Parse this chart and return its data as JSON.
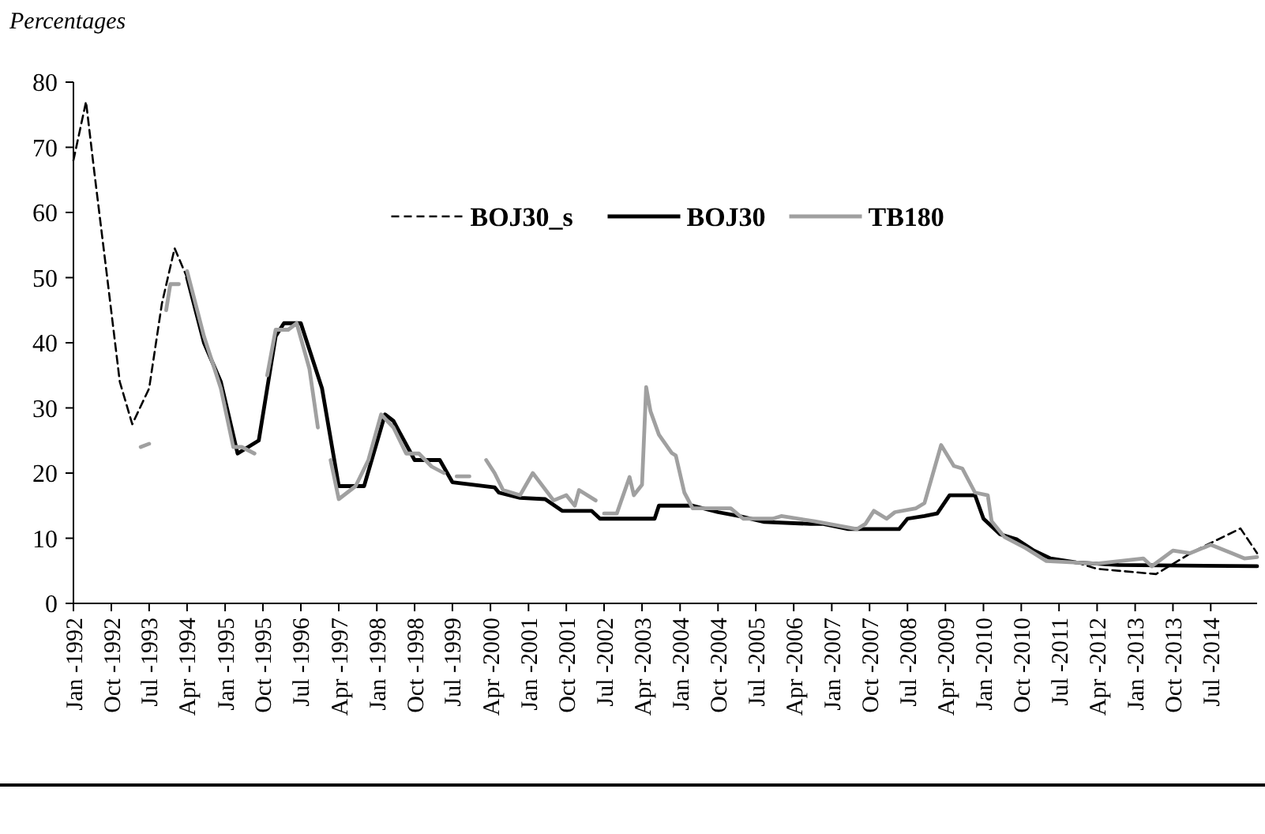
{
  "chart_data": {
    "type": "line",
    "title": "Percentages",
    "xlim": [
      "1992-01",
      "2015-06"
    ],
    "ylim": [
      0,
      80
    ],
    "yticks": [
      0,
      10,
      20,
      30,
      40,
      50,
      60,
      70,
      80
    ],
    "xticks": [
      {
        "value": "1992-01",
        "label": "Jan -1992"
      },
      {
        "value": "1992-10",
        "label": "Oct -1992"
      },
      {
        "value": "1993-07",
        "label": "Jul -1993"
      },
      {
        "value": "1994-04",
        "label": "Apr -1994"
      },
      {
        "value": "1995-01",
        "label": "Jan -1995"
      },
      {
        "value": "1995-10",
        "label": "Oct -1995"
      },
      {
        "value": "1996-07",
        "label": "Jul -1996"
      },
      {
        "value": "1997-04",
        "label": "Apr -1997"
      },
      {
        "value": "1998-01",
        "label": "Jan -1998"
      },
      {
        "value": "1998-10",
        "label": "Oct -1998"
      },
      {
        "value": "1999-07",
        "label": "Jul -1999"
      },
      {
        "value": "2000-04",
        "label": "Apr -2000"
      },
      {
        "value": "2001-01",
        "label": "Jan -2001"
      },
      {
        "value": "2001-10",
        "label": "Oct -2001"
      },
      {
        "value": "2002-07",
        "label": "Jul -2002"
      },
      {
        "value": "2003-04",
        "label": "Apr -2003"
      },
      {
        "value": "2004-01",
        "label": "Jan -2004"
      },
      {
        "value": "2004-10",
        "label": "Oct -2004"
      },
      {
        "value": "2005-07",
        "label": "Jul -2005"
      },
      {
        "value": "2006-04",
        "label": "Apr -2006"
      },
      {
        "value": "2007-01",
        "label": "Jan -2007"
      },
      {
        "value": "2007-10",
        "label": "Oct -2007"
      },
      {
        "value": "2008-07",
        "label": "Jul -2008"
      },
      {
        "value": "2009-04",
        "label": "Apr -2009"
      },
      {
        "value": "2010-01",
        "label": "Jan -2010"
      },
      {
        "value": "2010-10",
        "label": "Oct -2010"
      },
      {
        "value": "2011-07",
        "label": "Jul -2011"
      },
      {
        "value": "2012-04",
        "label": "Apr -2012"
      },
      {
        "value": "2013-01",
        "label": "Jan -2013"
      },
      {
        "value": "2013-10",
        "label": "Oct -2013"
      },
      {
        "value": "2014-07",
        "label": "Jul -2014"
      }
    ],
    "grid": false,
    "legend": "top",
    "marker": "none",
    "series": [
      {
        "name": "BOJ30_s",
        "color": "#000000",
        "line_style": "dashed",
        "x": [
          "1992-01",
          "1992-04",
          "1992-06",
          "1992-09",
          "1992-12",
          "1993-03",
          "1993-07",
          "1993-10",
          "1994-01",
          "1994-04",
          "1994-08",
          "1994-12",
          "1995-04",
          "1995-09",
          "1996-01",
          "1996-03",
          "1996-07",
          "1996-12",
          "1997-04",
          "1997-10",
          "1998-03",
          "1998-05",
          "1998-10",
          "1999-04",
          "1999-07",
          "1999-12",
          "2000-05",
          "2000-06",
          "2000-11",
          "2001-05",
          "2001-09",
          "2002-04",
          "2002-06",
          "2003-07",
          "2003-08",
          "2004-04",
          "2004-10",
          "2005-03",
          "2005-09",
          "2006-08",
          "2006-11",
          "2007-05",
          "2008-05",
          "2008-07",
          "2008-11",
          "2009-02",
          "2009-05",
          "2009-11",
          "2010-01",
          "2010-05",
          "2010-09",
          "2011-01",
          "2011-05",
          "2011-11",
          "2012-04",
          "2013-06",
          "2014-03",
          "2015-02",
          "2015-06"
        ],
        "values": [
          68,
          77,
          66,
          50,
          34,
          27.5,
          33,
          46,
          54.5,
          50,
          40,
          34,
          23,
          25,
          41,
          43,
          43,
          33,
          18,
          18,
          29,
          28,
          22,
          22,
          18.6,
          18.2,
          17.8,
          17,
          16.2,
          16,
          14.2,
          14.2,
          13,
          13,
          15,
          15,
          14,
          13.4,
          12.5,
          12.2,
          12.2,
          11.4,
          11.4,
          13,
          13.4,
          13.8,
          16.6,
          16.6,
          13,
          10.6,
          9.8,
          8.1,
          6.9,
          6.3,
          5.3,
          4.5,
          8,
          11.5,
          7.7
        ]
      },
      {
        "name": "BOJ30",
        "color": "#000000",
        "line_style": "solid",
        "x": [
          "1994-04",
          "1994-08",
          "1994-12",
          "1995-04",
          "1995-09",
          "1996-01",
          "1996-03",
          "1996-07",
          "1996-12",
          "1997-04",
          "1997-10",
          "1998-03",
          "1998-05",
          "1998-10",
          "1999-04",
          "1999-07",
          "1999-12",
          "2000-05",
          "2000-06",
          "2000-11",
          "2001-05",
          "2001-09",
          "2002-04",
          "2002-06",
          "2003-07",
          "2003-08",
          "2004-04",
          "2004-10",
          "2005-03",
          "2005-09",
          "2006-08",
          "2006-11",
          "2007-05",
          "2008-05",
          "2008-07",
          "2008-11",
          "2009-02",
          "2009-05",
          "2009-11",
          "2010-01",
          "2010-05",
          "2010-09",
          "2011-01",
          "2011-05",
          "2011-11",
          "2012-09",
          "2015-06"
        ],
        "values": [
          50,
          40,
          34,
          23,
          25,
          41,
          43,
          43,
          33,
          18,
          18,
          29,
          28,
          22,
          22,
          18.6,
          18.2,
          17.8,
          17,
          16.2,
          16,
          14.2,
          14.2,
          13,
          13,
          15,
          15,
          14,
          13.4,
          12.5,
          12.2,
          12.2,
          11.4,
          11.4,
          13,
          13.4,
          13.8,
          16.6,
          16.6,
          13,
          10.6,
          9.8,
          8.1,
          6.9,
          6.3,
          5.9,
          5.7
        ]
      },
      {
        "name": "TB180",
        "color": "#a0a0a0",
        "line_style": "solid",
        "x": [
          "1993-05",
          "1993-07",
          "1993-08",
          "1993-11",
          "1993-12",
          "1994-02",
          "1994-03",
          "1994-04",
          "1994-08",
          "1994-12",
          "1995-03",
          "1995-05",
          "1995-08",
          "1995-09",
          "1995-11",
          "1996-01",
          "1996-04",
          "1996-06",
          "1996-09",
          "1996-11",
          "1996-12",
          "1997-02",
          "1997-04",
          "1997-06",
          "1997-08",
          "1997-11",
          "1998-02",
          "1998-05",
          "1998-08",
          "1998-11",
          "1999-02",
          "1999-05",
          "1999-06",
          "1999-08",
          "1999-11",
          "1999-12",
          "2000-03",
          "2000-05",
          "2000-07",
          "2000-11",
          "2001-02",
          "2001-07",
          "2001-10",
          "2001-12",
          "2002-01",
          "2002-05",
          "2002-06",
          "2002-07",
          "2002-10",
          "2003-01",
          "2003-02",
          "2003-04",
          "2003-05",
          "2003-06",
          "2003-08",
          "2003-11",
          "2003-12",
          "2004-02",
          "2004-04",
          "2005-01",
          "2005-04",
          "2005-11",
          "2006-01",
          "2006-09",
          "2007-07",
          "2007-09",
          "2007-11",
          "2008-02",
          "2008-04",
          "2008-09",
          "2008-11",
          "2009-03",
          "2009-06",
          "2009-08",
          "2009-11",
          "2010-02",
          "2010-03",
          "2010-06",
          "2010-11",
          "2011-04",
          "2012-04",
          "2013-03",
          "2013-05",
          "2013-10",
          "2014-02",
          "2014-07",
          "2014-12",
          "2015-03",
          "2015-06"
        ],
        "values": [
          24,
          24.5,
          null,
          45,
          49,
          49,
          null,
          51,
          41,
          33,
          24,
          24,
          23,
          null,
          35,
          42,
          42,
          43,
          36,
          27,
          null,
          22,
          16,
          17,
          18,
          22,
          29,
          27,
          23,
          23,
          21,
          20,
          null,
          19.5,
          19.5,
          null,
          22,
          20,
          17.4,
          16.6,
          20,
          15.8,
          16.6,
          15,
          17.4,
          15.8,
          null,
          13.8,
          13.8,
          19.4,
          16.6,
          18.2,
          33.2,
          29.5,
          25.9,
          23.1,
          22.7,
          17,
          14.6,
          14.6,
          13,
          13,
          13.4,
          12.6,
          11.4,
          12.2,
          14.2,
          13,
          14,
          14.6,
          15.4,
          24.3,
          21.1,
          20.7,
          17,
          16.6,
          12.6,
          10.2,
          8.5,
          6.5,
          6.1,
          6.9,
          5.7,
          8.1,
          7.7,
          9,
          7.7,
          6.9,
          7.1
        ]
      }
    ]
  }
}
